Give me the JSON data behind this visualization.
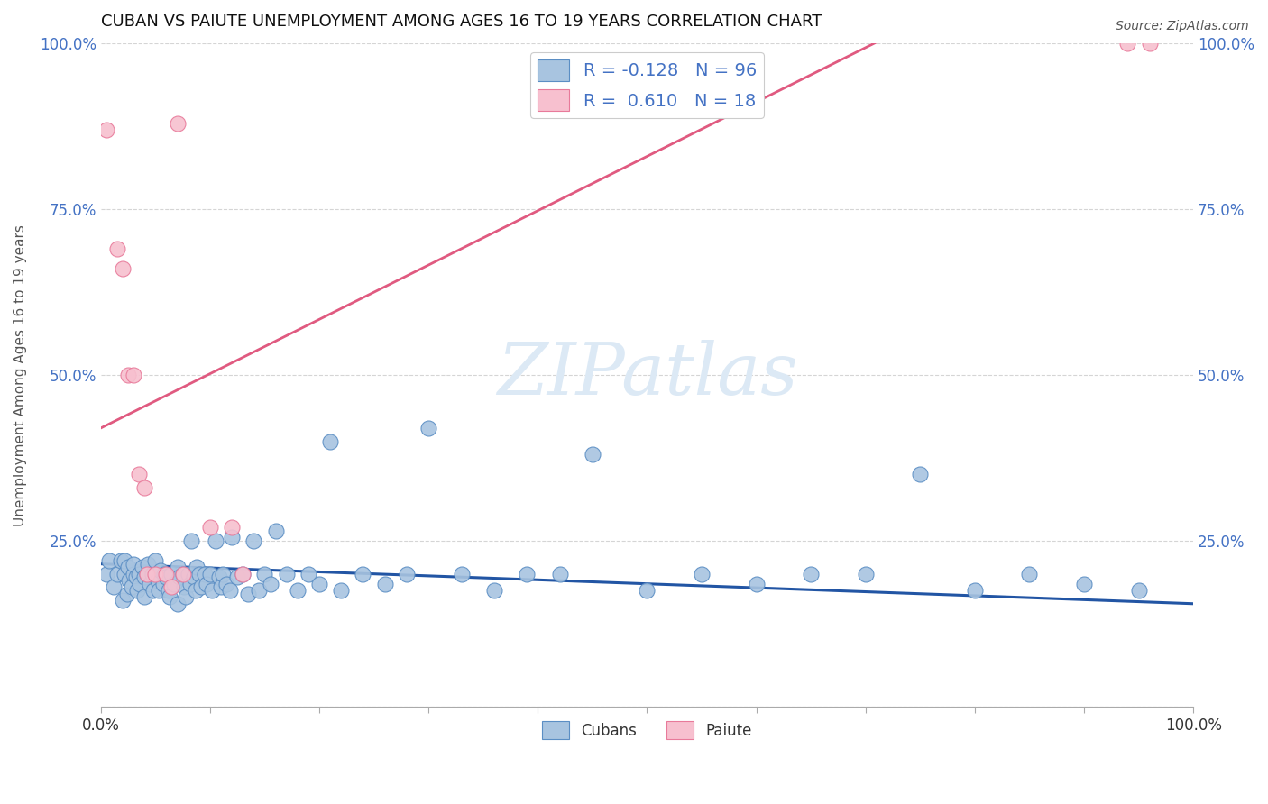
{
  "title": "CUBAN VS PAIUTE UNEMPLOYMENT AMONG AGES 16 TO 19 YEARS CORRELATION CHART",
  "source": "Source: ZipAtlas.com",
  "ylabel": "Unemployment Among Ages 16 to 19 years",
  "xlim": [
    0.0,
    1.0
  ],
  "ylim": [
    0.0,
    1.0
  ],
  "xtick_positions": [
    0.0,
    0.1,
    0.2,
    0.3,
    0.4,
    0.5,
    0.6,
    0.7,
    0.8,
    0.9,
    1.0
  ],
  "xticklabels": [
    "0.0%",
    "",
    "",
    "",
    "",
    "",
    "",
    "",
    "",
    "",
    "100.0%"
  ],
  "ytick_positions": [
    0.0,
    0.25,
    0.5,
    0.75,
    1.0
  ],
  "yticklabels": [
    "",
    "25.0%",
    "50.0%",
    "75.0%",
    "100.0%"
  ],
  "cubans_R": -0.128,
  "cubans_N": 96,
  "paiute_R": 0.61,
  "paiute_N": 18,
  "cubans_color": "#a8c4e0",
  "cubans_edge_color": "#5b8ec4",
  "cubans_line_color": "#2255a4",
  "paiute_color": "#f7c0cf",
  "paiute_edge_color": "#e87a9a",
  "paiute_line_color": "#e05a80",
  "watermark_color": "#dce9f5",
  "grid_color": "#d5d5d5",
  "cubans_x": [
    0.005,
    0.008,
    0.012,
    0.015,
    0.018,
    0.02,
    0.022,
    0.022,
    0.024,
    0.025,
    0.026,
    0.028,
    0.03,
    0.03,
    0.032,
    0.033,
    0.035,
    0.036,
    0.038,
    0.04,
    0.04,
    0.042,
    0.043,
    0.045,
    0.047,
    0.048,
    0.05,
    0.05,
    0.052,
    0.053,
    0.055,
    0.057,
    0.058,
    0.06,
    0.062,
    0.063,
    0.065,
    0.067,
    0.07,
    0.07,
    0.072,
    0.075,
    0.076,
    0.078,
    0.08,
    0.082,
    0.083,
    0.085,
    0.087,
    0.088,
    0.09,
    0.092,
    0.095,
    0.097,
    0.1,
    0.102,
    0.105,
    0.108,
    0.11,
    0.112,
    0.115,
    0.118,
    0.12,
    0.125,
    0.13,
    0.135,
    0.14,
    0.145,
    0.15,
    0.155,
    0.16,
    0.17,
    0.18,
    0.19,
    0.2,
    0.21,
    0.22,
    0.24,
    0.26,
    0.28,
    0.3,
    0.33,
    0.36,
    0.39,
    0.42,
    0.45,
    0.5,
    0.55,
    0.6,
    0.65,
    0.7,
    0.75,
    0.8,
    0.85,
    0.9,
    0.95
  ],
  "cubans_y": [
    0.2,
    0.22,
    0.18,
    0.2,
    0.22,
    0.16,
    0.2,
    0.22,
    0.17,
    0.21,
    0.19,
    0.18,
    0.2,
    0.215,
    0.195,
    0.175,
    0.2,
    0.185,
    0.21,
    0.195,
    0.165,
    0.2,
    0.215,
    0.185,
    0.2,
    0.175,
    0.2,
    0.22,
    0.19,
    0.175,
    0.205,
    0.185,
    0.2,
    0.195,
    0.175,
    0.165,
    0.2,
    0.185,
    0.21,
    0.155,
    0.195,
    0.2,
    0.18,
    0.165,
    0.2,
    0.185,
    0.25,
    0.195,
    0.175,
    0.21,
    0.2,
    0.18,
    0.2,
    0.185,
    0.2,
    0.175,
    0.25,
    0.195,
    0.18,
    0.2,
    0.185,
    0.175,
    0.255,
    0.195,
    0.2,
    0.17,
    0.25,
    0.175,
    0.2,
    0.185,
    0.265,
    0.2,
    0.175,
    0.2,
    0.185,
    0.4,
    0.175,
    0.2,
    0.185,
    0.2,
    0.42,
    0.2,
    0.175,
    0.2,
    0.2,
    0.38,
    0.175,
    0.2,
    0.185,
    0.2,
    0.2,
    0.35,
    0.175,
    0.2,
    0.185,
    0.175
  ],
  "paiute_x": [
    0.005,
    0.015,
    0.02,
    0.025,
    0.03,
    0.035,
    0.04,
    0.042,
    0.05,
    0.06,
    0.065,
    0.07,
    0.075,
    0.1,
    0.12,
    0.13,
    0.94,
    0.96
  ],
  "paiute_y": [
    0.87,
    0.69,
    0.66,
    0.5,
    0.5,
    0.35,
    0.33,
    0.2,
    0.2,
    0.2,
    0.18,
    0.88,
    0.2,
    0.27,
    0.27,
    0.2,
    1.0,
    1.0
  ],
  "cubans_line_intercept": 0.215,
  "cubans_line_slope": -0.06,
  "paiute_line_intercept": 0.42,
  "paiute_line_slope": 0.82
}
